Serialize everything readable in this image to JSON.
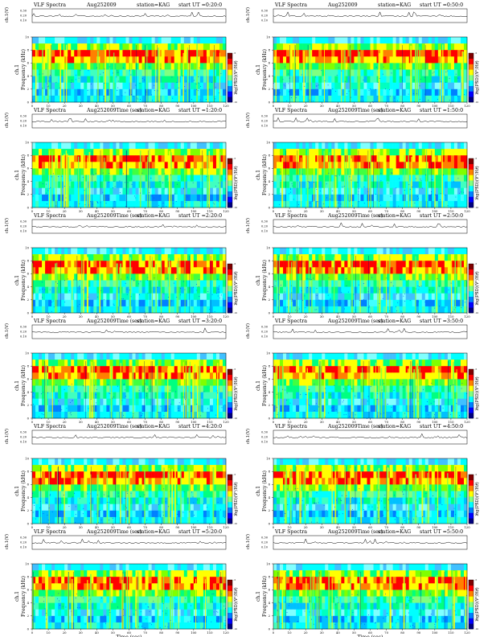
{
  "page": {
    "title": "VLF Spectra"
  },
  "chart_data": [
    {
      "type": "heatmap",
      "title": "VLF Spectra",
      "date": "Aug252009",
      "station": "station=KAG",
      "start": "start UT =0:20:0",
      "xlabel": "Time (sec)",
      "ylabel": "Frequency (kHz)",
      "channel": "ch.1",
      "trace_label": "ch.1(V)",
      "colorbar_label": "log(PSD)(V²/Hz)",
      "xlim": [
        0,
        120
      ],
      "ylim": [
        0,
        10
      ],
      "xticks": [
        0,
        10,
        20,
        30,
        40,
        50,
        60,
        70,
        80,
        90,
        100,
        110,
        120
      ],
      "yticks": [
        0,
        2,
        4,
        6,
        8,
        10
      ],
      "trace_ticks": [
        "0.30",
        "0.20",
        "0.10"
      ],
      "colorbar_ticks": [
        "-5",
        "-6",
        "-7",
        "-8",
        "-9",
        "-10"
      ]
    },
    {
      "type": "heatmap",
      "title": "VLF Spectra",
      "date": "Aug252009",
      "station": "station=KAG",
      "start": "start UT =0:50:0",
      "xlabel": "Time (sec)",
      "ylabel": "Frequency (kHz)",
      "channel": "ch.1",
      "trace_label": "ch.1(V)",
      "colorbar_label": "log(PSD)(V²/Hz)",
      "xlim": [
        0,
        120
      ],
      "ylim": [
        0,
        10
      ],
      "xticks": [
        0,
        10,
        20,
        30,
        40,
        50,
        60,
        70,
        80,
        90,
        100,
        110,
        120
      ],
      "yticks": [
        0,
        2,
        4,
        6,
        8,
        10
      ],
      "trace_ticks": [
        "0.30",
        "0.20",
        "0.10"
      ],
      "colorbar_ticks": [
        "-5",
        "-6",
        "-7",
        "-8",
        "-9",
        "-10"
      ]
    },
    {
      "type": "heatmap",
      "title": "VLF Spectra",
      "date": "Aug252009",
      "station": "station=KAG",
      "start": "start UT =1:20:0",
      "xlabel": "Time (sec)",
      "ylabel": "Frequency (kHz)",
      "channel": "ch.1",
      "trace_label": "ch.1(V)",
      "colorbar_label": "log(PSD)(V²/Hz)",
      "xlim": [
        0,
        120
      ],
      "ylim": [
        0,
        10
      ],
      "xticks": [
        0,
        10,
        20,
        30,
        40,
        50,
        60,
        70,
        80,
        90,
        100,
        110,
        120
      ],
      "yticks": [
        0,
        2,
        4,
        6,
        8,
        10
      ],
      "trace_ticks": [
        "0.30",
        "0.20",
        "0.10"
      ],
      "colorbar_ticks": [
        "-5",
        "-6",
        "-7",
        "-8",
        "-9",
        "-10"
      ]
    },
    {
      "type": "heatmap",
      "title": "VLF Spectra",
      "date": "Aug252009",
      "station": "station=KAG",
      "start": "start UT =1:50:0",
      "xlabel": "Time (sec)",
      "ylabel": "Frequency (kHz)",
      "channel": "ch.1",
      "trace_label": "ch.1(V)",
      "colorbar_label": "log(PSD)(V²/Hz)",
      "xlim": [
        0,
        120
      ],
      "ylim": [
        0,
        10
      ],
      "xticks": [
        0,
        10,
        20,
        30,
        40,
        50,
        60,
        70,
        80,
        90,
        100,
        110,
        120
      ],
      "yticks": [
        0,
        2,
        4,
        6,
        8,
        10
      ],
      "trace_ticks": [
        "0.30",
        "0.20",
        "0.10"
      ],
      "colorbar_ticks": [
        "-5",
        "-6",
        "-7",
        "-8",
        "-9",
        "-10"
      ]
    },
    {
      "type": "heatmap",
      "title": "VLF Spectra",
      "date": "Aug252009",
      "station": "station=KAG",
      "start": "start UT =2:20:0",
      "xlabel": "Time (sec)",
      "ylabel": "Frequency (kHz)",
      "channel": "ch.1",
      "trace_label": "ch.1(V)",
      "colorbar_label": "log(PSD)(V²/Hz)",
      "xlim": [
        0,
        120
      ],
      "ylim": [
        0,
        10
      ],
      "xticks": [
        0,
        10,
        20,
        30,
        40,
        50,
        60,
        70,
        80,
        90,
        100,
        110,
        120
      ],
      "yticks": [
        0,
        2,
        4,
        6,
        8,
        10
      ],
      "trace_ticks": [
        "0.30",
        "0.20",
        "0.10"
      ],
      "colorbar_ticks": [
        "-5",
        "-6",
        "-7",
        "-8",
        "-9",
        "-10"
      ]
    },
    {
      "type": "heatmap",
      "title": "VLF Spectra",
      "date": "Aug252009",
      "station": "station=KAG",
      "start": "start UT =2:50:0",
      "xlabel": "Time (sec)",
      "ylabel": "Frequency (kHz)",
      "channel": "ch.1",
      "trace_label": "ch.1(V)",
      "colorbar_label": "log(PSD)(V²/Hz)",
      "xlim": [
        0,
        120
      ],
      "ylim": [
        0,
        10
      ],
      "xticks": [
        0,
        10,
        20,
        30,
        40,
        50,
        60,
        70,
        80,
        90,
        100,
        110,
        120
      ],
      "yticks": [
        0,
        2,
        4,
        6,
        8,
        10
      ],
      "trace_ticks": [
        "0.30",
        "0.20",
        "0.10"
      ],
      "colorbar_ticks": [
        "-5",
        "-6",
        "-7",
        "-8",
        "-9",
        "-10"
      ]
    },
    {
      "type": "heatmap",
      "title": "VLF Spectra",
      "date": "Aug252009",
      "station": "station=KAG",
      "start": "start UT =3:20:0",
      "xlabel": "Time (sec)",
      "ylabel": "Frequency (kHz)",
      "channel": "ch.1",
      "trace_label": "ch.1(V)",
      "colorbar_label": "log(PSD)(V²/Hz)",
      "xlim": [
        0,
        120
      ],
      "ylim": [
        0,
        10
      ],
      "xticks": [
        0,
        10,
        20,
        30,
        40,
        50,
        60,
        70,
        80,
        90,
        100,
        110,
        120
      ],
      "yticks": [
        0,
        2,
        4,
        6,
        8,
        10
      ],
      "trace_ticks": [
        "0.30",
        "0.20",
        "0.10"
      ],
      "colorbar_ticks": [
        "-5",
        "-6",
        "-7",
        "-8",
        "-9",
        "-10"
      ]
    },
    {
      "type": "heatmap",
      "title": "VLF Spectra",
      "date": "Aug252009",
      "station": "station=KAG",
      "start": "start UT =3:50:0",
      "xlabel": "Time (sec)",
      "ylabel": "Frequency (kHz)",
      "channel": "ch.1",
      "trace_label": "ch.1(V)",
      "colorbar_label": "log(PSD)(V²/Hz)",
      "xlim": [
        0,
        120
      ],
      "ylim": [
        0,
        10
      ],
      "xticks": [
        0,
        10,
        20,
        30,
        40,
        50,
        60,
        70,
        80,
        90,
        100,
        110,
        120
      ],
      "yticks": [
        0,
        2,
        4,
        6,
        8,
        10
      ],
      "trace_ticks": [
        "0.30",
        "0.20",
        "0.10"
      ],
      "colorbar_ticks": [
        "-5",
        "-6",
        "-7",
        "-8",
        "-9",
        "-10"
      ]
    },
    {
      "type": "heatmap",
      "title": "VLF Spectra",
      "date": "Aug252009",
      "station": "station=KAG",
      "start": "start UT =4:20:0",
      "xlabel": "Time (sec)",
      "ylabel": "Frequency (kHz)",
      "channel": "ch.1",
      "trace_label": "ch.1(V)",
      "colorbar_label": "log(PSD)(V²/Hz)",
      "xlim": [
        0,
        120
      ],
      "ylim": [
        0,
        10
      ],
      "xticks": [
        0,
        10,
        20,
        30,
        40,
        50,
        60,
        70,
        80,
        90,
        100,
        110,
        120
      ],
      "yticks": [
        0,
        2,
        4,
        6,
        8,
        10
      ],
      "trace_ticks": [
        "0.30",
        "0.20",
        "0.10"
      ],
      "colorbar_ticks": [
        "-5",
        "-6",
        "-7",
        "-8",
        "-9",
        "-10"
      ]
    },
    {
      "type": "heatmap",
      "title": "VLF Spectra",
      "date": "Aug252009",
      "station": "station=KAG",
      "start": "start UT =4:50:0",
      "xlabel": "Time (sec)",
      "ylabel": "Frequency (kHz)",
      "channel": "ch.1",
      "trace_label": "ch.1(V)",
      "colorbar_label": "log(PSD)(V²/Hz)",
      "xlim": [
        0,
        120
      ],
      "ylim": [
        0,
        10
      ],
      "xticks": [
        0,
        10,
        20,
        30,
        40,
        50,
        60,
        70,
        80,
        90,
        100,
        110,
        120
      ],
      "yticks": [
        0,
        2,
        4,
        6,
        8,
        10
      ],
      "trace_ticks": [
        "0.30",
        "0.20",
        "0.10"
      ],
      "colorbar_ticks": [
        "-5",
        "-6",
        "-7",
        "-8",
        "-9",
        "-10"
      ]
    },
    {
      "type": "heatmap",
      "title": "VLF Spectra",
      "date": "Aug252009",
      "station": "station=KAG",
      "start": "start UT =5:20:0",
      "xlabel": "Time (sec)",
      "ylabel": "Frequency (kHz)",
      "channel": "ch.1",
      "trace_label": "ch.1(V)",
      "colorbar_label": "log(PSD)(V²/Hz)",
      "xlim": [
        0,
        120
      ],
      "ylim": [
        0,
        10
      ],
      "xticks": [
        0,
        10,
        20,
        30,
        40,
        50,
        60,
        70,
        80,
        90,
        100,
        110,
        120
      ],
      "yticks": [
        0,
        2,
        4,
        6,
        8,
        10
      ],
      "trace_ticks": [
        "0.30",
        "0.20",
        "0.10"
      ],
      "colorbar_ticks": [
        "-5",
        "-6",
        "-7",
        "-8",
        "-9",
        "-10"
      ]
    },
    {
      "type": "heatmap",
      "title": "VLF Spectra",
      "date": "Aug252009",
      "station": "station=KAG",
      "start": "start UT =5:50:0",
      "xlabel": "Time (sec)",
      "ylabel": "Frequency (kHz)",
      "channel": "ch.1",
      "trace_label": "ch.1(V)",
      "colorbar_label": "log(PSD)(V²/Hz)",
      "xlim": [
        0,
        120
      ],
      "ylim": [
        0,
        10
      ],
      "xticks": [
        0,
        10,
        20,
        30,
        40,
        50,
        60,
        70,
        80,
        90,
        100,
        110,
        120
      ],
      "yticks": [
        0,
        2,
        4,
        6,
        8,
        10
      ],
      "trace_ticks": [
        "0.30",
        "0.20",
        "0.10"
      ],
      "colorbar_ticks": [
        "-5",
        "-6",
        "-7",
        "-8",
        "-9",
        "-10"
      ]
    }
  ],
  "colorscale": [
    "#00007f",
    "#0000ff",
    "#0080ff",
    "#00ffff",
    "#80ff80",
    "#ffff00",
    "#ff8000",
    "#ff0000",
    "#7f0000"
  ]
}
